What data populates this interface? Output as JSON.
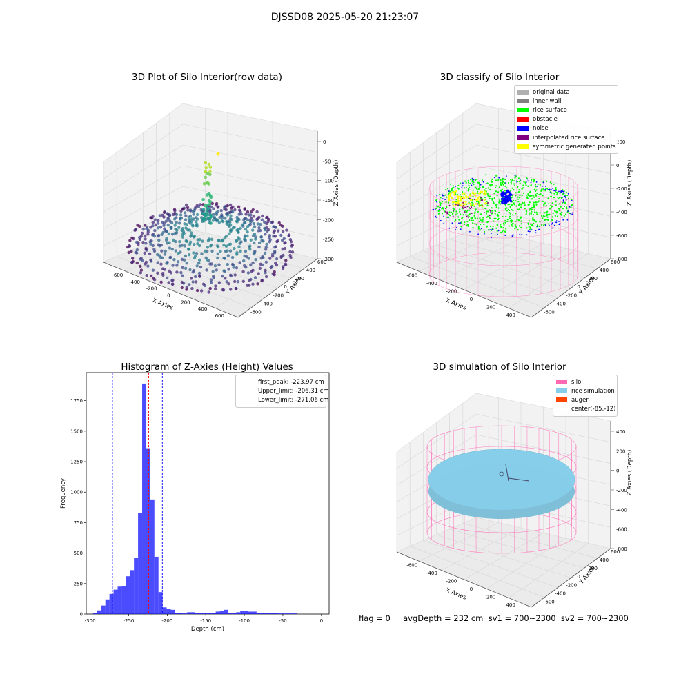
{
  "suptitle": "DJSSD08 2025-05-20 21:23:07",
  "panels": {
    "raw": {
      "title": "3D Plot of Silo Interior(row data)",
      "xlabel": "X Axies",
      "ylabel": "Y Axies",
      "zlabel": "Z Axies (Depth)",
      "xticks": [
        "-600",
        "-400",
        "-200",
        "0",
        "200",
        "400",
        "600"
      ],
      "yticks": [
        "-600",
        "-400",
        "-200",
        "0",
        "200",
        "400",
        "600"
      ],
      "zticks": [
        "0",
        "-50",
        "-100",
        "-150",
        "-200",
        "-250",
        "-300"
      ]
    },
    "classify": {
      "title": "3D classify of Silo Interior",
      "xlabel": "X Axies",
      "ylabel": "Y Axies",
      "zlabel": "Z Axies (Depth)",
      "xticks": [
        "-600",
        "-400",
        "-200",
        "0",
        "200",
        "400"
      ],
      "yticks": [
        "-600",
        "-400",
        "-200",
        "0",
        "200",
        "400",
        "600"
      ],
      "zticks": [
        "200",
        "0",
        "-200",
        "-400",
        "-600",
        "-800"
      ],
      "legend": [
        {
          "label": "original data",
          "color": "#b0b0b0"
        },
        {
          "label": "inner wall",
          "color": "#808080"
        },
        {
          "label": "rice surface",
          "color": "#00ff00"
        },
        {
          "label": "obstacle",
          "color": "#ff0000"
        },
        {
          "label": "noise",
          "color": "#0000ff"
        },
        {
          "label": "interpolated rice surface",
          "color": "#800080"
        },
        {
          "label": "symmetric generated points",
          "color": "#ffff00"
        }
      ]
    },
    "simulation": {
      "title": "3D simulation of Silo Interior",
      "xlabel": "X Axies",
      "ylabel": "Y Axies",
      "zlabel": "Z Axies (Depth)",
      "xticks": [
        "-600",
        "-400",
        "-200",
        "0",
        "200",
        "400"
      ],
      "yticks": [
        "-600",
        "-400",
        "-200",
        "0",
        "200",
        "400",
        "600"
      ],
      "zticks": [
        "400",
        "200",
        "0",
        "-200",
        "-400",
        "-600",
        "-800"
      ],
      "legend": [
        {
          "label": "silo",
          "color": "#ff69b4"
        },
        {
          "label": "rice simulation",
          "color": "#87ceeb"
        },
        {
          "label": "auger",
          "color": "#ff4500"
        },
        {
          "label": "center(-85,-12)",
          "color": ""
        }
      ]
    }
  },
  "chart_data": {
    "type": "bar",
    "title": "Histogram of Z-Axies (Height) Values",
    "xlabel": "Depth (cm)",
    "ylabel": "Frequency",
    "xlim": [
      -305,
      10
    ],
    "ylim": [
      0,
      1980
    ],
    "xticks": [
      -300,
      -250,
      -200,
      -150,
      -100,
      -50,
      0
    ],
    "yticks": [
      0,
      250,
      500,
      750,
      1000,
      1250,
      1500,
      1750
    ],
    "bin_width": 5.3,
    "bin_starts": [
      -296.1,
      -290.8,
      -285.5,
      -280.2,
      -274.9,
      -269.6,
      -264.3,
      -259.0,
      -253.7,
      -248.4,
      -243.1,
      -237.8,
      -232.5,
      -227.2,
      -221.9,
      -216.6,
      -211.3,
      -206.0,
      -200.7,
      -195.4,
      -190.1,
      -184.8,
      -179.5,
      -174.2,
      -168.9,
      -163.6,
      -158.3,
      -153.0,
      -147.7,
      -142.4,
      -137.1,
      -131.8,
      -126.5,
      -121.2,
      -115.9,
      -110.6,
      -105.3,
      -100.0,
      -94.7,
      -89.4,
      -84.1,
      -78.8,
      -73.5,
      -68.2,
      -62.9,
      -57.6,
      -52.3,
      -47.0,
      -41.7,
      -36.4
    ],
    "counts": [
      8,
      30,
      70,
      120,
      165,
      200,
      225,
      230,
      310,
      360,
      460,
      830,
      1890,
      1360,
      940,
      470,
      180,
      55,
      45,
      35,
      10,
      10,
      5,
      15,
      15,
      10,
      10,
      10,
      10,
      10,
      20,
      25,
      35,
      10,
      8,
      15,
      25,
      25,
      20,
      20,
      10,
      10,
      10,
      10,
      10,
      5,
      5,
      5,
      5,
      5
    ],
    "color": "#0000ff",
    "lines": [
      {
        "label": "first_peak: -223.97 cm",
        "x": -223.97,
        "color": "#ff0000"
      },
      {
        "label": "Upper_limit: -206.31 cm",
        "x": -206.31,
        "color": "#0000ff"
      },
      {
        "label": "Lower_limit: -271.06 cm",
        "x": -271.06,
        "color": "#0000ff"
      }
    ]
  },
  "footer": "flag = 0     avgDepth = 232 cm  sv1 = 700~2300  sv2 = 700~2300"
}
